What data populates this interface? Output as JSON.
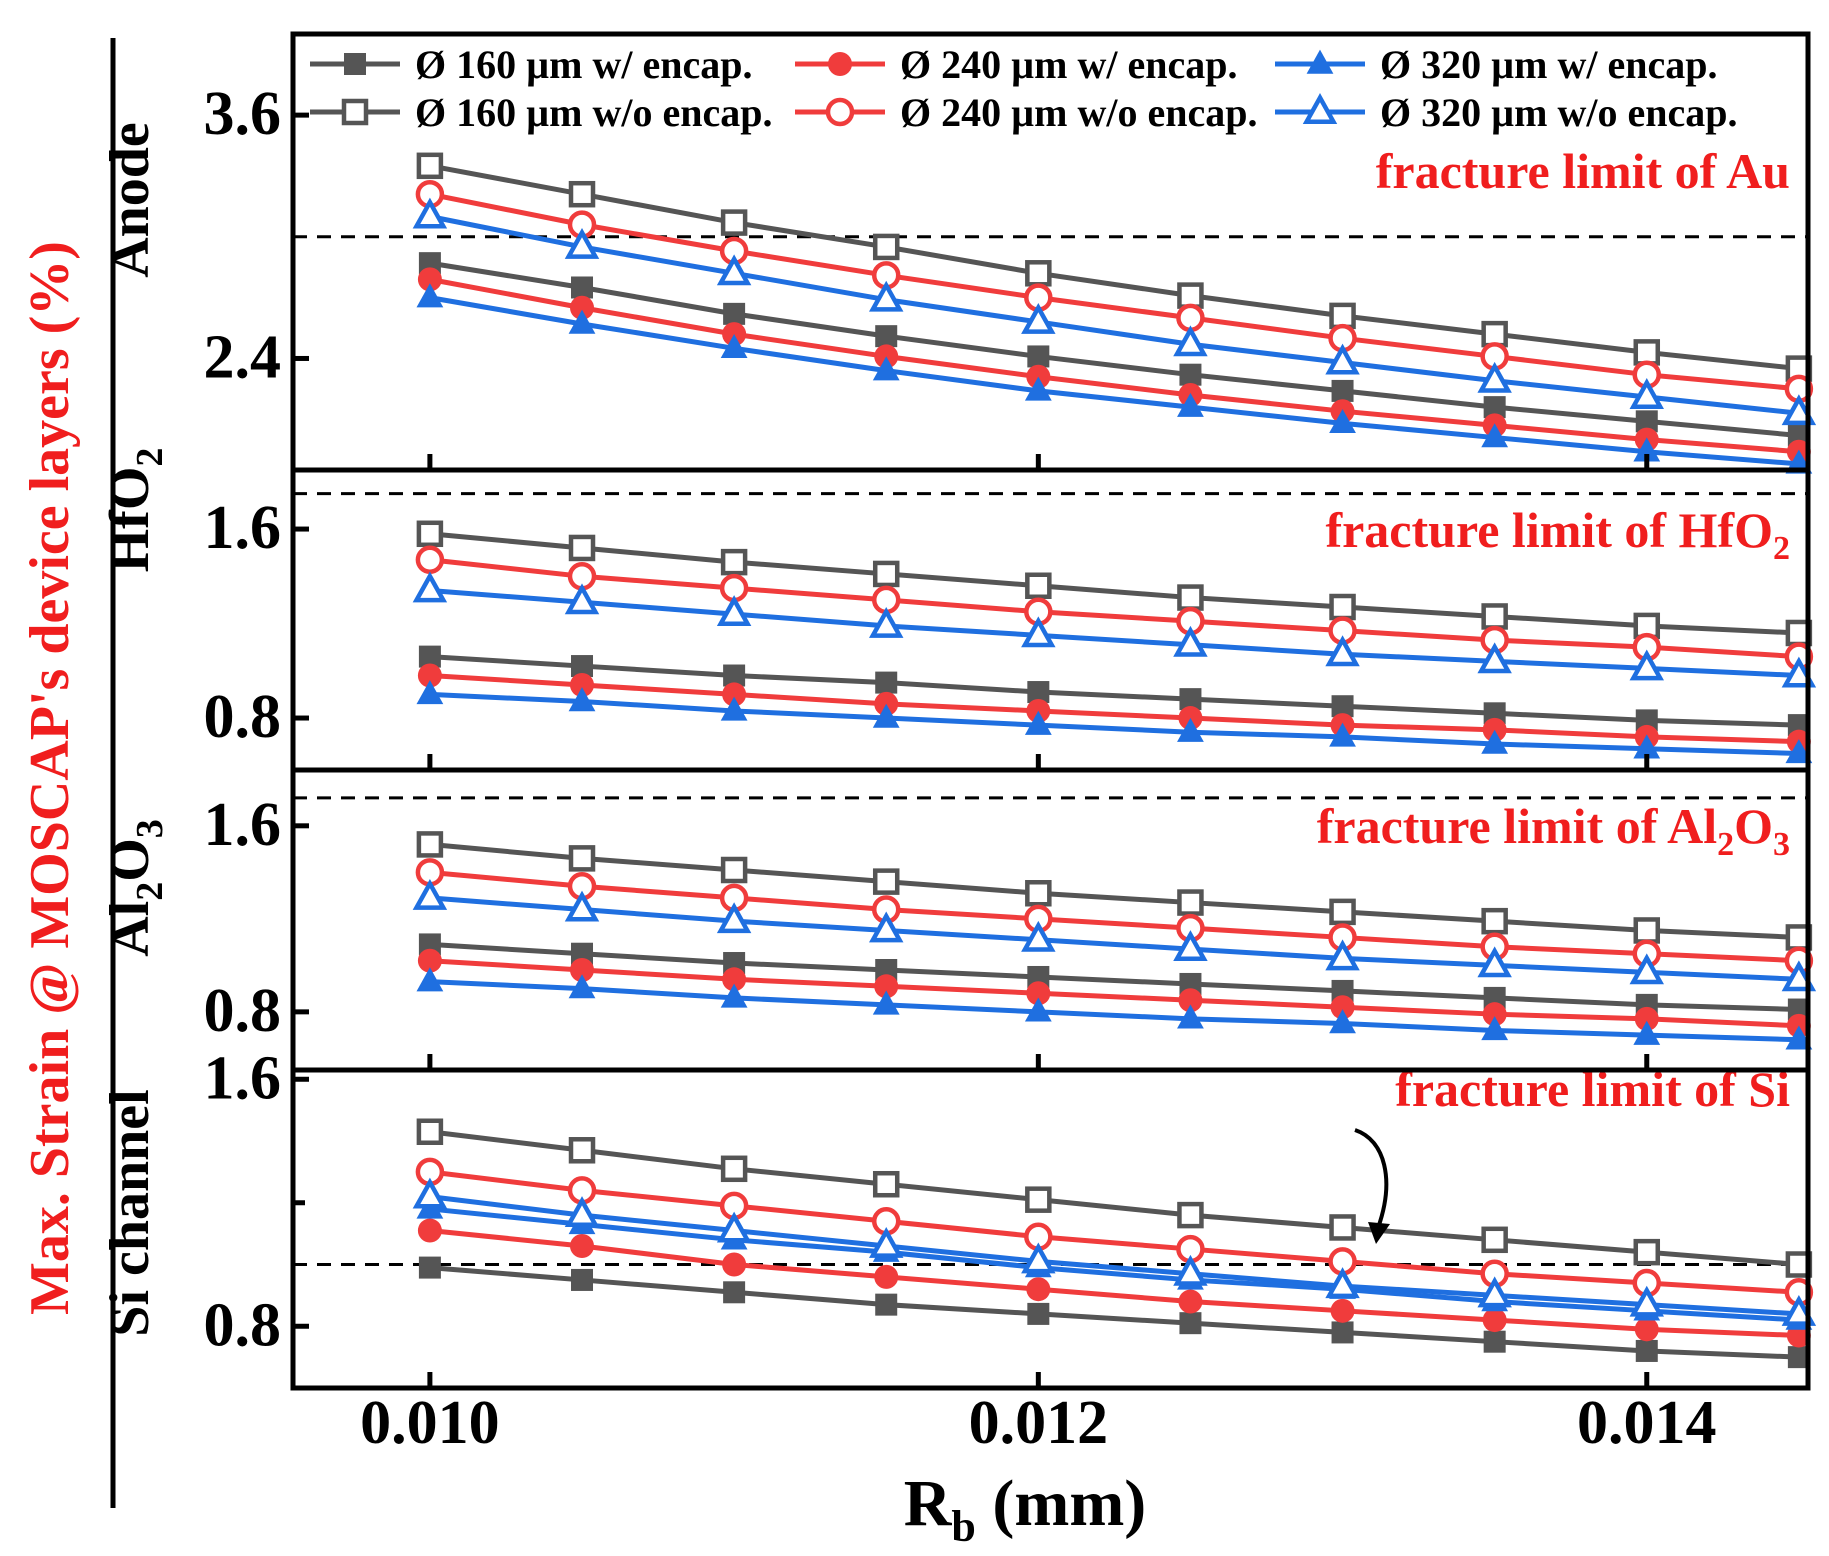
{
  "chart_data": {
    "type": "line",
    "y_title": "Max. Strain @ MOSCAP's device layers (%)",
    "x_title_main": "R",
    "x_title_sub": "b",
    "x_title_unit": " (mm)",
    "xlim": [
      0.00955,
      0.01453
    ],
    "x_ticks": [
      0.01,
      0.012,
      0.014
    ],
    "x_tick_labels": [
      "0.010",
      "0.012",
      "0.014"
    ],
    "x": [
      0.01,
      0.0105,
      0.011,
      0.0115,
      0.012,
      0.0125,
      0.013,
      0.0135,
      0.014,
      0.0145
    ],
    "legend": [
      {
        "label": "Ø 160 µm w/ encap.",
        "color": "#555555",
        "marker": "square",
        "filled": true
      },
      {
        "label": "Ø 240 µm w/ encap.",
        "color": "#f03c3c",
        "marker": "circle",
        "filled": true
      },
      {
        "label": "Ø 320 µm w/ encap.",
        "color": "#1f6fe0",
        "marker": "triangle",
        "filled": true
      },
      {
        "label": "Ø 160 µm w/o encap.",
        "color": "#555555",
        "marker": "square",
        "filled": false
      },
      {
        "label": "Ø 240 µm w/o encap.",
        "color": "#f03c3c",
        "marker": "circle",
        "filled": false
      },
      {
        "label": "Ø 320 µm w/o encap.",
        "color": "#1f6fe0",
        "marker": "triangle",
        "filled": false
      }
    ],
    "panels": [
      {
        "label": "Anode",
        "label_sub": "",
        "ylim": [
          1.85,
          4.0
        ],
        "y_ticks": [
          2.4,
          3.6
        ],
        "y_tick_labels": [
          "2.4",
          "3.6"
        ],
        "minor_ticks": [],
        "fracture_limit": 3.0,
        "fracture_text": "fracture limit of Au",
        "fracture_text_sub": "",
        "fracture_text_tail": "",
        "series": [
          {
            "legend_index": 0,
            "values": [
              2.87,
              2.75,
              2.62,
              2.51,
              2.41,
              2.32,
              2.24,
              2.16,
              2.09,
              2.02
            ]
          },
          {
            "legend_index": 1,
            "values": [
              2.79,
              2.65,
              2.52,
              2.41,
              2.31,
              2.22,
              2.14,
              2.07,
              2.0,
              1.94
            ]
          },
          {
            "legend_index": 2,
            "values": [
              2.7,
              2.57,
              2.45,
              2.34,
              2.24,
              2.16,
              2.08,
              2.01,
              1.94,
              1.88
            ]
          },
          {
            "legend_index": 3,
            "values": [
              3.35,
              3.21,
              3.07,
              2.95,
              2.82,
              2.71,
              2.61,
              2.52,
              2.43,
              2.35
            ]
          },
          {
            "legend_index": 4,
            "values": [
              3.21,
              3.06,
              2.93,
              2.81,
              2.7,
              2.6,
              2.5,
              2.41,
              2.32,
              2.25
            ]
          },
          {
            "legend_index": 5,
            "values": [
              3.1,
              2.95,
              2.82,
              2.69,
              2.58,
              2.47,
              2.38,
              2.29,
              2.21,
              2.13
            ]
          }
        ]
      },
      {
        "label": "HfO",
        "label_sub": "2",
        "ylim": [
          0.58,
          1.85
        ],
        "y_ticks": [
          0.8,
          1.6
        ],
        "y_tick_labels": [
          "0.8",
          "1.6"
        ],
        "minor_ticks": [],
        "fracture_limit": 1.75,
        "fracture_text": "fracture limit of HfO",
        "fracture_text_sub": "2",
        "fracture_text_tail": "",
        "series": [
          {
            "legend_index": 0,
            "values": [
              1.06,
              1.02,
              0.98,
              0.95,
              0.91,
              0.88,
              0.85,
              0.82,
              0.79,
              0.77
            ]
          },
          {
            "legend_index": 1,
            "values": [
              0.98,
              0.94,
              0.9,
              0.86,
              0.83,
              0.8,
              0.77,
              0.75,
              0.72,
              0.7
            ]
          },
          {
            "legend_index": 2,
            "values": [
              0.9,
              0.87,
              0.83,
              0.8,
              0.77,
              0.74,
              0.72,
              0.69,
              0.67,
              0.65
            ]
          },
          {
            "legend_index": 3,
            "values": [
              1.58,
              1.52,
              1.46,
              1.41,
              1.36,
              1.31,
              1.27,
              1.23,
              1.19,
              1.16
            ]
          },
          {
            "legend_index": 4,
            "values": [
              1.47,
              1.4,
              1.35,
              1.3,
              1.25,
              1.21,
              1.17,
              1.13,
              1.1,
              1.06
            ]
          },
          {
            "legend_index": 5,
            "values": [
              1.34,
              1.29,
              1.24,
              1.19,
              1.15,
              1.11,
              1.07,
              1.04,
              1.01,
              0.98
            ]
          }
        ]
      },
      {
        "label": "Al",
        "label_sub": "2",
        "label_tail": "O",
        "label_tail_sub": "3",
        "ylim": [
          0.55,
          1.84
        ],
        "y_ticks": [
          0.8,
          1.6
        ],
        "y_tick_labels": [
          "0.8",
          "1.6"
        ],
        "minor_ticks": [],
        "fracture_limit": 1.72,
        "fracture_text": "fracture limit of Al",
        "fracture_text_sub": "2",
        "fracture_text_tail": "O",
        "fracture_text_tail_sub": "3",
        "series": [
          {
            "legend_index": 0,
            "values": [
              1.09,
              1.05,
              1.01,
              0.98,
              0.95,
              0.92,
              0.89,
              0.86,
              0.83,
              0.81
            ]
          },
          {
            "legend_index": 1,
            "values": [
              1.02,
              0.98,
              0.94,
              0.91,
              0.88,
              0.85,
              0.82,
              0.79,
              0.77,
              0.74
            ]
          },
          {
            "legend_index": 2,
            "values": [
              0.93,
              0.9,
              0.86,
              0.83,
              0.8,
              0.77,
              0.75,
              0.72,
              0.7,
              0.68
            ]
          },
          {
            "legend_index": 3,
            "values": [
              1.52,
              1.46,
              1.41,
              1.36,
              1.31,
              1.27,
              1.23,
              1.19,
              1.15,
              1.12
            ]
          },
          {
            "legend_index": 4,
            "values": [
              1.4,
              1.34,
              1.29,
              1.24,
              1.2,
              1.16,
              1.12,
              1.08,
              1.05,
              1.02
            ]
          },
          {
            "legend_index": 5,
            "values": [
              1.29,
              1.24,
              1.19,
              1.15,
              1.11,
              1.07,
              1.03,
              1.0,
              0.97,
              0.94
            ]
          }
        ]
      },
      {
        "label": "Si channel",
        "label_sub": "",
        "ylim": [
          0.6,
          1.63
        ],
        "y_ticks": [
          0.8,
          1.6
        ],
        "y_tick_labels": [
          "0.8",
          "1.6"
        ],
        "minor_ticks": [
          1.2
        ],
        "fracture_limit": 1.0,
        "fracture_text": "fracture limit of Si",
        "fracture_text_sub": "",
        "fracture_text_tail": "",
        "series": [
          {
            "legend_index": 0,
            "values": [
              0.99,
              0.95,
              0.91,
              0.87,
              0.84,
              0.81,
              0.78,
              0.75,
              0.72,
              0.7
            ]
          },
          {
            "legend_index": 1,
            "values": [
              1.11,
              1.06,
              1.0,
              0.96,
              0.92,
              0.88,
              0.85,
              0.82,
              0.79,
              0.77
            ]
          },
          {
            "legend_index": 2,
            "values": [
              1.18,
              1.13,
              1.08,
              1.04,
              0.99,
              0.95,
              0.92,
              0.88,
              0.85,
              0.82
            ]
          },
          {
            "legend_index": 3,
            "values": [
              1.43,
              1.37,
              1.31,
              1.26,
              1.21,
              1.16,
              1.12,
              1.08,
              1.04,
              1.0
            ]
          },
          {
            "legend_index": 4,
            "values": [
              1.3,
              1.24,
              1.19,
              1.14,
              1.09,
              1.05,
              1.01,
              0.97,
              0.94,
              0.91
            ]
          },
          {
            "legend_index": 5,
            "values": [
              1.22,
              1.16,
              1.11,
              1.06,
              1.01,
              0.97,
              0.93,
              0.9,
              0.87,
              0.84
            ]
          }
        ]
      }
    ]
  }
}
